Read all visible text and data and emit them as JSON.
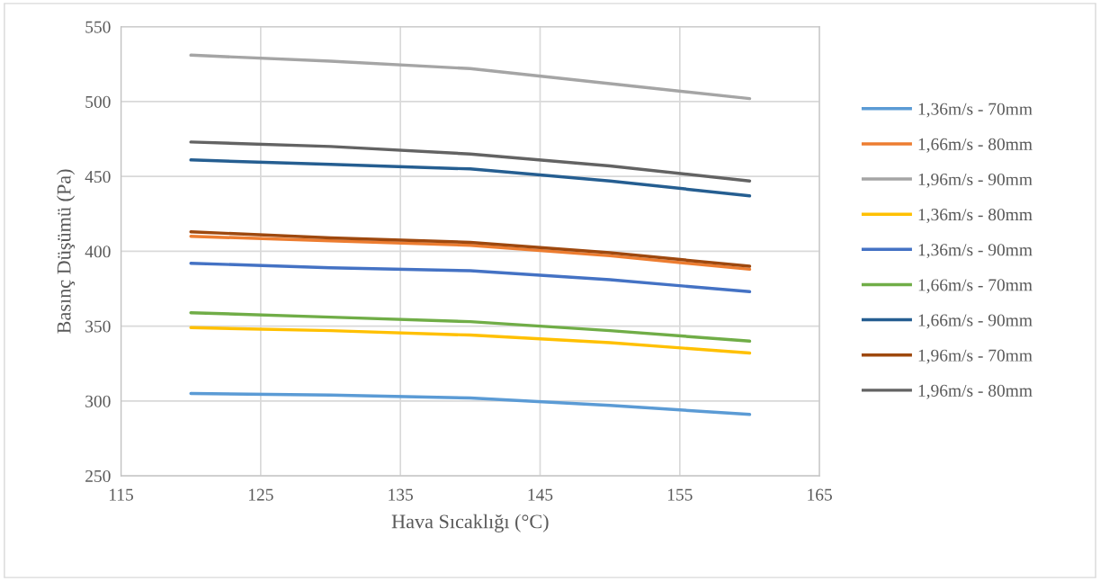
{
  "chart_data": {
    "type": "line",
    "xlabel": "Hava Sıcaklığı (°C)",
    "ylabel": "Basınç Düşümü (Pa)",
    "x": [
      120,
      130,
      140,
      150,
      160
    ],
    "xlim": [
      115,
      165
    ],
    "xticks": [
      115,
      125,
      135,
      145,
      155,
      165
    ],
    "ylim": [
      250,
      550
    ],
    "yticks": [
      250,
      300,
      350,
      400,
      450,
      500,
      550
    ],
    "grid": true,
    "legend": "right",
    "marker": "none",
    "line_style": "solid",
    "series": [
      {
        "name": "1,36m/s - 70mm",
        "color": "#5b9bd5",
        "values": [
          305,
          304,
          302,
          297,
          291
        ]
      },
      {
        "name": "1,66m/s - 80mm",
        "color": "#ed7d31",
        "values": [
          410,
          407,
          404,
          397,
          388
        ]
      },
      {
        "name": "1,96m/s - 90mm",
        "color": "#a5a5a5",
        "values": [
          531,
          527,
          522,
          512,
          502
        ]
      },
      {
        "name": "1,36m/s - 80mm",
        "color": "#ffc000",
        "values": [
          349,
          347,
          344,
          339,
          332
        ]
      },
      {
        "name": "1,36m/s - 90mm",
        "color": "#4472c4",
        "values": [
          392,
          389,
          387,
          381,
          373
        ]
      },
      {
        "name": "1,66m/s - 70mm",
        "color": "#70ad47",
        "values": [
          359,
          356,
          353,
          347,
          340
        ]
      },
      {
        "name": "1,66m/s - 90mm",
        "color": "#255e91",
        "values": [
          461,
          458,
          455,
          447,
          437
        ]
      },
      {
        "name": "1,96m/s - 70mm",
        "color": "#9e480e",
        "values": [
          413,
          409,
          406,
          399,
          390
        ]
      },
      {
        "name": "1,96m/s - 80mm",
        "color": "#636363",
        "values": [
          473,
          470,
          465,
          457,
          447
        ]
      }
    ]
  }
}
